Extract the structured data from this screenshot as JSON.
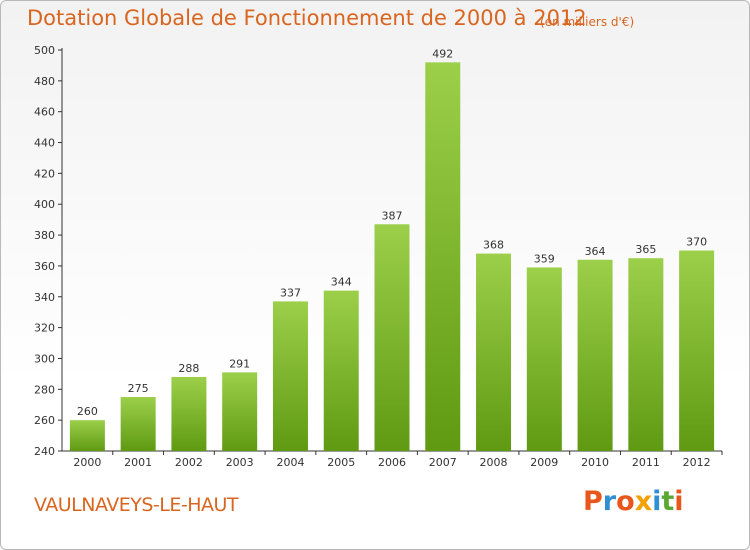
{
  "header": {
    "title": "Dotation Globale de Fonctionnement de 2000 à 2012",
    "unit_note": "(en milliers d'€)"
  },
  "footer": {
    "town": "VAULNAVEYS-LE-HAUT",
    "logo": "Proxiti",
    "logo_colors": [
      "#e8561c",
      "#2f8fd4",
      "#e8561c",
      "#f2a100",
      "#2f8fd4",
      "#5aa832",
      "#e8561c"
    ]
  },
  "colors": {
    "title": "#d9651f",
    "bar_top": "#9ccf4a",
    "bar_bottom": "#5f9a12",
    "axis": "#333333",
    "grid": "#e0e0e0"
  },
  "chart_data": {
    "type": "bar",
    "title": "Dotation Globale de Fonctionnement de 2000 à 2012",
    "subtitle": "(en milliers d'€)",
    "categories": [
      "2000",
      "2001",
      "2002",
      "2003",
      "2004",
      "2005",
      "2006",
      "2007",
      "2008",
      "2009",
      "2010",
      "2011",
      "2012"
    ],
    "values": [
      260,
      275,
      288,
      291,
      337,
      344,
      387,
      492,
      368,
      359,
      364,
      365,
      370
    ],
    "ylim": [
      240,
      500
    ],
    "yticks": [
      240,
      260,
      280,
      300,
      320,
      340,
      360,
      380,
      400,
      420,
      440,
      460,
      480,
      500
    ],
    "grid": false,
    "data_labels": true
  }
}
